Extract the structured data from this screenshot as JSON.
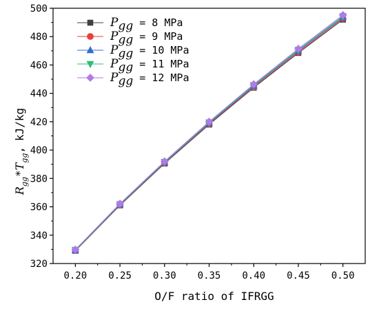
{
  "chart_data": {
    "type": "line",
    "xlabel": "O/F ratio of IFRGG",
    "ylabel": {
      "r_symbol": "R",
      "r_sub": "gg",
      "star": "*",
      "t_symbol": "T",
      "t_sub": "gg",
      "comma": ",",
      "unit": "kJ/kg"
    },
    "x": [
      0.2,
      0.25,
      0.3,
      0.35,
      0.4,
      0.45,
      0.5
    ],
    "x_tick_labels": [
      "0.20",
      "0.25",
      "0.30",
      "0.35",
      "0.40",
      "0.45",
      "0.50"
    ],
    "xlim": [
      0.175,
      0.525
    ],
    "ylim": [
      320,
      500
    ],
    "y_ticks": [
      320,
      340,
      360,
      380,
      400,
      420,
      440,
      460,
      480,
      500
    ],
    "y_tick_labels": [
      "320",
      "340",
      "360",
      "380",
      "400",
      "420",
      "440",
      "460",
      "480",
      "500"
    ],
    "grid": false,
    "legend_position": "top-left",
    "series": [
      {
        "legend_symbol": "P",
        "legend_sub": "gg",
        "legend_value": " = 8 MPa",
        "marker": "square",
        "color": "#404040",
        "values": [
          329.0,
          361.0,
          390.5,
          418.0,
          444.0,
          468.5,
          492.0
        ]
      },
      {
        "legend_symbol": "P",
        "legend_sub": "gg",
        "legend_value": " = 9 MPa",
        "marker": "circle",
        "color": "#e8413c",
        "values": [
          329.2,
          361.3,
          390.8,
          418.5,
          444.5,
          469.2,
          492.8
        ]
      },
      {
        "legend_symbol": "P",
        "legend_sub": "gg",
        "legend_value": " = 10 MPa",
        "marker": "triangle-up",
        "color": "#2f6fd0",
        "values": [
          329.4,
          361.6,
          391.2,
          419.0,
          445.2,
          470.0,
          493.6
        ]
      },
      {
        "legend_symbol": "P",
        "legend_sub": "gg",
        "legend_value": " = 11 MPa",
        "marker": "triangle-down",
        "color": "#2bbf79",
        "values": [
          329.6,
          361.9,
          391.6,
          419.5,
          445.8,
          470.7,
          494.4
        ]
      },
      {
        "legend_symbol": "P",
        "legend_sub": "gg",
        "legend_value": " = 12 MPa",
        "marker": "diamond",
        "color": "#b07ae8",
        "values": [
          329.8,
          362.2,
          392.0,
          420.0,
          446.4,
          471.4,
          495.2
        ]
      }
    ]
  }
}
